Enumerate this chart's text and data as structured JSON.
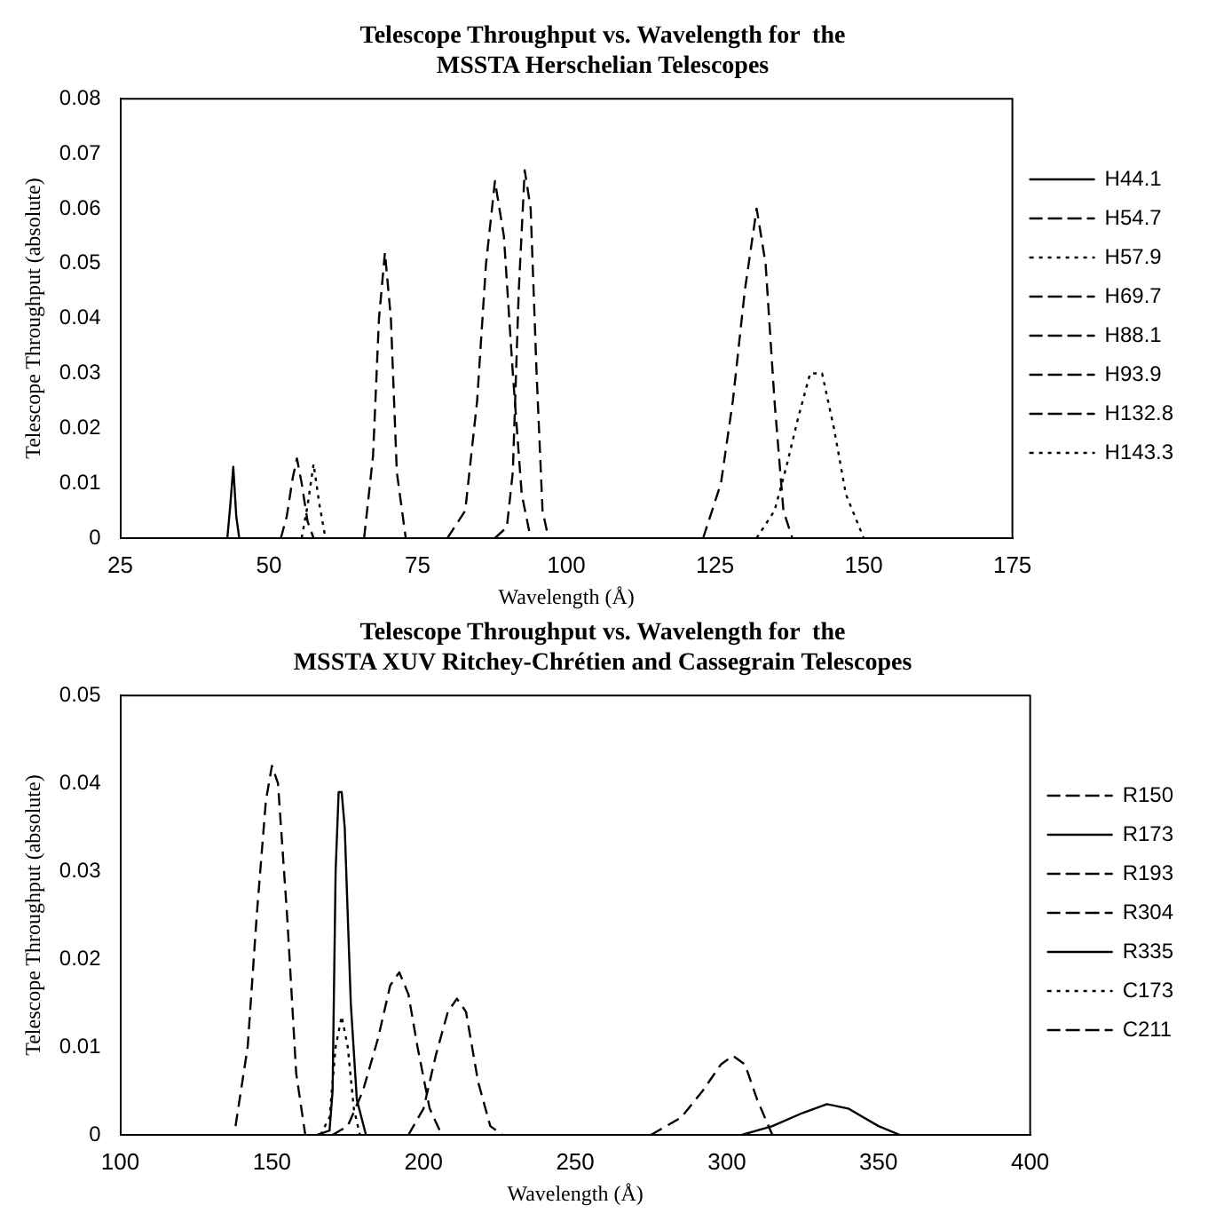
{
  "chart_data": [
    {
      "type": "line",
      "title": [
        "Telescope Throughput vs. Wavelength for  the",
        "MSSTA Herschelian Telescopes"
      ],
      "xlabel": "Wavelength (Å)",
      "ylabel": "Telescope Throughput (absolute)",
      "xlim": [
        25,
        175
      ],
      "xticks": [
        25,
        50,
        75,
        100,
        125,
        150,
        175
      ],
      "ylim": [
        0,
        0.08
      ],
      "yticks": [
        0,
        0.01,
        0.02,
        0.03,
        0.04,
        0.05,
        0.06,
        0.07,
        0.08
      ],
      "grid": false,
      "legend": "right",
      "series": [
        {
          "name": "H44.1",
          "color": "#000000",
          "line_style": "solid",
          "x": [
            43,
            43.5,
            44,
            44.5,
            45
          ],
          "values": [
            0,
            0.006,
            0.013,
            0.004,
            0
          ]
        },
        {
          "name": "H54.7",
          "color": "#000000",
          "line_style": "dashed",
          "x": [
            52,
            53,
            54,
            54.7,
            55.5,
            56.5,
            57.5
          ],
          "values": [
            0,
            0.004,
            0.011,
            0.0145,
            0.01,
            0.003,
            0
          ]
        },
        {
          "name": "H57.9",
          "color": "#000000",
          "line_style": "dotted",
          "x": [
            55.5,
            56.5,
            57.5,
            58.5,
            59.5
          ],
          "values": [
            0,
            0.006,
            0.0135,
            0.006,
            0
          ]
        },
        {
          "name": "H69.7",
          "color": "#000000",
          "line_style": "dashed",
          "x": [
            66,
            67.5,
            68.5,
            69.5,
            70.5,
            71.5,
            73
          ],
          "values": [
            0,
            0.015,
            0.04,
            0.052,
            0.04,
            0.012,
            0
          ]
        },
        {
          "name": "H88.1",
          "color": "#000000",
          "line_style": "dashed",
          "x": [
            80,
            83,
            85,
            86.5,
            88,
            89.5,
            91,
            92.5,
            94
          ],
          "values": [
            0,
            0.005,
            0.025,
            0.05,
            0.065,
            0.055,
            0.03,
            0.008,
            0
          ]
        },
        {
          "name": "H93.9",
          "color": "#000000",
          "line_style": "dashed",
          "x": [
            88,
            90,
            91,
            92,
            93,
            94,
            95,
            96,
            97
          ],
          "values": [
            0,
            0.002,
            0.012,
            0.045,
            0.067,
            0.06,
            0.03,
            0.005,
            0
          ]
        },
        {
          "name": "H132.8",
          "color": "#000000",
          "line_style": "dashed",
          "x": [
            123,
            126,
            128,
            130,
            132,
            133.5,
            135,
            136.5,
            138
          ],
          "values": [
            0,
            0.01,
            0.025,
            0.045,
            0.06,
            0.05,
            0.025,
            0.005,
            0
          ]
        },
        {
          "name": "H143.3",
          "color": "#000000",
          "line_style": "dotted",
          "x": [
            132,
            135,
            137,
            139,
            141,
            143,
            145,
            147,
            150
          ],
          "values": [
            0,
            0.005,
            0.013,
            0.022,
            0.03,
            0.03,
            0.02,
            0.008,
            0
          ]
        }
      ]
    },
    {
      "type": "line",
      "title": [
        "Telescope Throughput vs. Wavelength for  the",
        "MSSTA XUV Ritchey-Chrétien and Cassegrain Telescopes"
      ],
      "xlabel": "Wavelength (Å)",
      "ylabel": "Telescope Throughput (absolute)",
      "xlim": [
        100,
        400
      ],
      "xticks": [
        100,
        150,
        200,
        250,
        300,
        350,
        400
      ],
      "ylim": [
        0,
        0.05
      ],
      "yticks": [
        0,
        0.01,
        0.02,
        0.03,
        0.04,
        0.05
      ],
      "grid": false,
      "legend": "right",
      "series": [
        {
          "name": "R150",
          "color": "#000000",
          "line_style": "dashed",
          "x": [
            138,
            142,
            145,
            148,
            150,
            152,
            155,
            158,
            161
          ],
          "values": [
            0.001,
            0.01,
            0.025,
            0.038,
            0.042,
            0.04,
            0.025,
            0.007,
            0
          ]
        },
        {
          "name": "R173",
          "color": "#000000",
          "line_style": "solid",
          "x": [
            165,
            169,
            170,
            171,
            172,
            173,
            174,
            176,
            178,
            181
          ],
          "values": [
            0,
            0.0005,
            0.005,
            0.03,
            0.039,
            0.039,
            0.035,
            0.015,
            0.004,
            0
          ]
        },
        {
          "name": "R193",
          "color": "#000000",
          "line_style": "dashed",
          "x": [
            170,
            175,
            180,
            185,
            189,
            192,
            195,
            198,
            202,
            206
          ],
          "values": [
            0,
            0.001,
            0.005,
            0.011,
            0.017,
            0.0185,
            0.016,
            0.01,
            0.003,
            0
          ]
        },
        {
          "name": "R304",
          "color": "#000000",
          "line_style": "dashed",
          "x": [
            275,
            285,
            292,
            298,
            302,
            306,
            310,
            315
          ],
          "values": [
            0,
            0.002,
            0.005,
            0.008,
            0.009,
            0.008,
            0.004,
            0
          ]
        },
        {
          "name": "R335",
          "color": "#000000",
          "line_style": "solid",
          "x": [
            305,
            315,
            325,
            333,
            340,
            350,
            357
          ],
          "values": [
            0,
            0.001,
            0.0025,
            0.0035,
            0.003,
            0.001,
            0
          ]
        },
        {
          "name": "C173",
          "color": "#000000",
          "line_style": "dotted",
          "x": [
            166,
            169,
            171,
            173,
            175,
            177,
            179
          ],
          "values": [
            0,
            0.002,
            0.01,
            0.0135,
            0.01,
            0.003,
            0
          ]
        },
        {
          "name": "C211",
          "color": "#000000",
          "line_style": "dashed",
          "x": [
            195,
            200,
            204,
            208,
            211,
            214,
            218,
            222,
            226
          ],
          "values": [
            0,
            0.003,
            0.009,
            0.014,
            0.0155,
            0.014,
            0.006,
            0.001,
            0
          ]
        }
      ]
    }
  ]
}
